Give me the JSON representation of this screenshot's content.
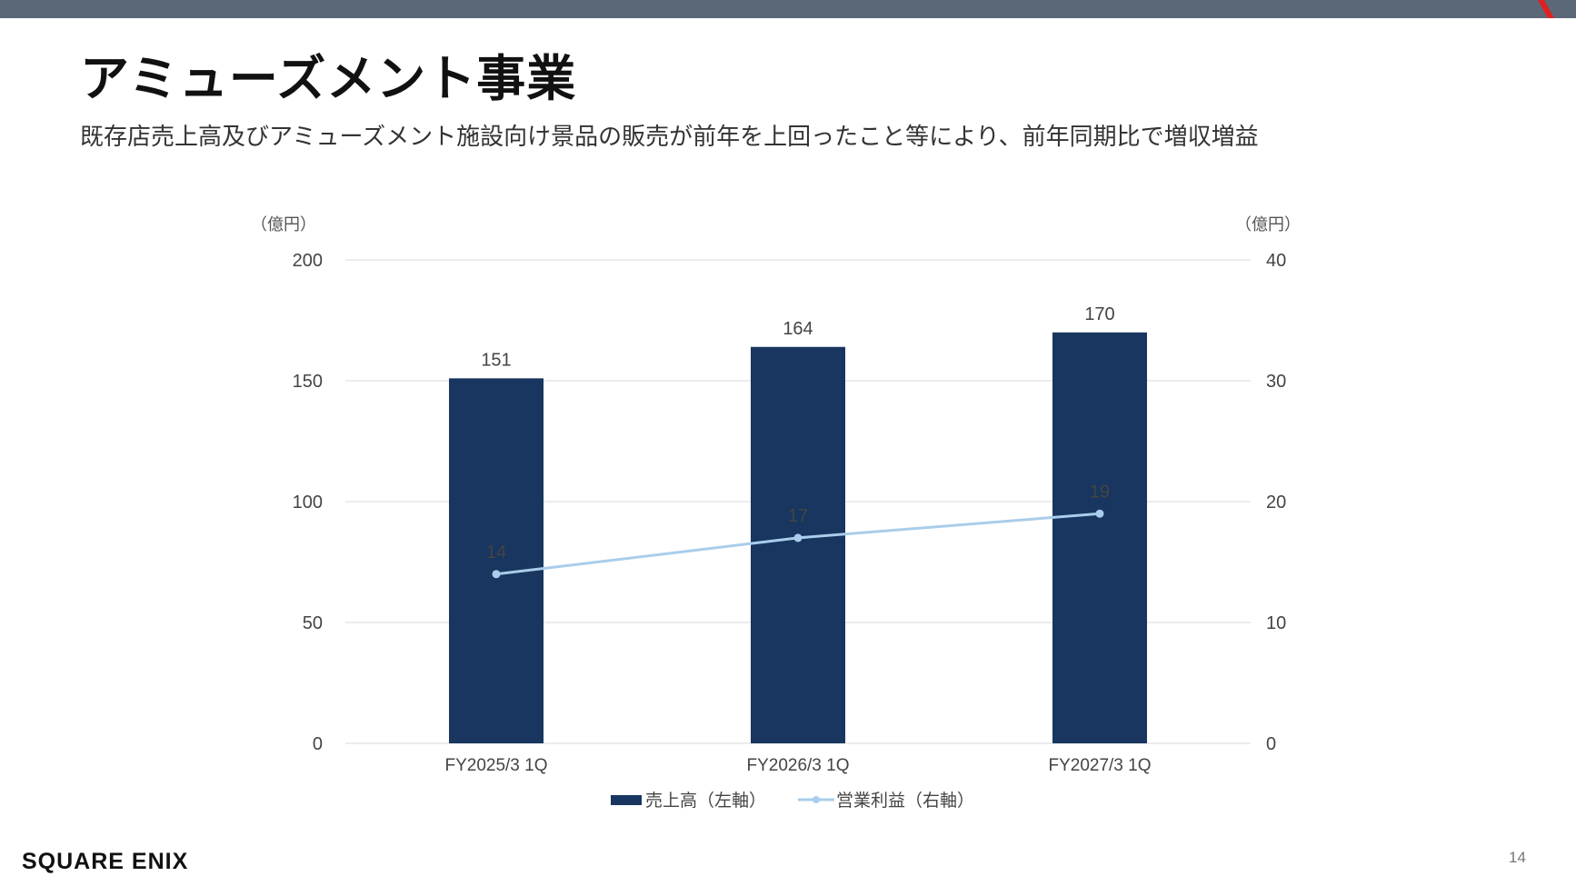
{
  "header": {
    "title": "アミューズメント事業",
    "subtitle": "既存店売上高及びアミューズメント施設向け景品の販売が前年を上回ったこと等により、前年同期比で増収増益"
  },
  "colors": {
    "bar": "#18365f",
    "line": "#a9cdea",
    "grid": "#d9d9d9",
    "topbar": "#5b6878",
    "accent": "#e02020"
  },
  "chart_data": {
    "type": "bar",
    "categories": [
      "FY2025/3 1Q",
      "FY2026/3 1Q",
      "FY2027/3 1Q"
    ],
    "series": [
      {
        "name": "売上高（左軸）",
        "type": "bar",
        "axis": "left",
        "values": [
          151,
          164,
          170
        ],
        "labels": [
          "151",
          "164",
          "170"
        ]
      },
      {
        "name": "営業利益（右軸）",
        "type": "line",
        "axis": "right",
        "values": [
          14,
          17,
          19
        ],
        "labels": [
          "14",
          "17",
          "19"
        ]
      }
    ],
    "left_axis": {
      "unit": "（億円）",
      "min": 0,
      "max": 200,
      "ticks": [
        "0",
        "50",
        "100",
        "150",
        "200"
      ]
    },
    "right_axis": {
      "unit": "（億円）",
      "min": 0,
      "max": 40,
      "ticks": [
        "0",
        "10",
        "20",
        "30",
        "40"
      ]
    },
    "grid": true,
    "legend": "bottom"
  },
  "footer": {
    "logo": "SQUARE ENIX",
    "page_number": "14"
  }
}
